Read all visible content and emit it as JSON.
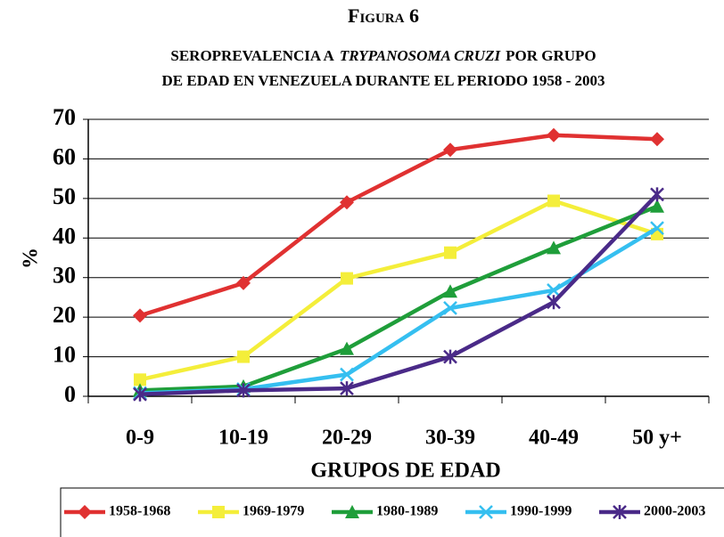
{
  "chart_data": {
    "type": "line",
    "title": "Figura 6",
    "subtitle": [
      [
        "SEROPREVALENCIA  A",
        "TRYPANOSOMA CRUZI",
        "POR GRUPO"
      ],
      "DE EDAD EN VENEZUELA DURANTE EL PERIODO 1958 - 2003"
    ],
    "x_label": "GRUPOS DE EDAD",
    "y_label": "%",
    "categories": [
      "0-9",
      "10-19",
      "20-29",
      "30-39",
      "40-49",
      "50 y+"
    ],
    "ylim": [
      0,
      70
    ],
    "yticks": [
      0,
      10,
      20,
      30,
      40,
      50,
      60,
      70
    ],
    "grid": true,
    "legend": "bottom",
    "series": [
      {
        "name": "1958-1968",
        "color": "#e03131",
        "marker": "diamond",
        "values": [
          20.4,
          28.6,
          49,
          62.3,
          66,
          65
        ]
      },
      {
        "name": "1969-1979",
        "color": "#f4ee3a",
        "marker": "square",
        "values": [
          4.2,
          10,
          29.8,
          36.3,
          49.4,
          41
        ]
      },
      {
        "name": "1980-1989",
        "color": "#1f9e3a",
        "marker": "triangle",
        "values": [
          1.5,
          2.5,
          12,
          26.5,
          37.5,
          48
        ]
      },
      {
        "name": "1990-1999",
        "color": "#35bff0",
        "marker": "x",
        "values": [
          0.8,
          1.8,
          5.5,
          22.3,
          26.8,
          42.5
        ]
      },
      {
        "name": "2000-2003",
        "color": "#4a2a88",
        "marker": "star",
        "values": [
          0.5,
          1.5,
          2,
          10,
          23.8,
          51
        ]
      }
    ]
  }
}
